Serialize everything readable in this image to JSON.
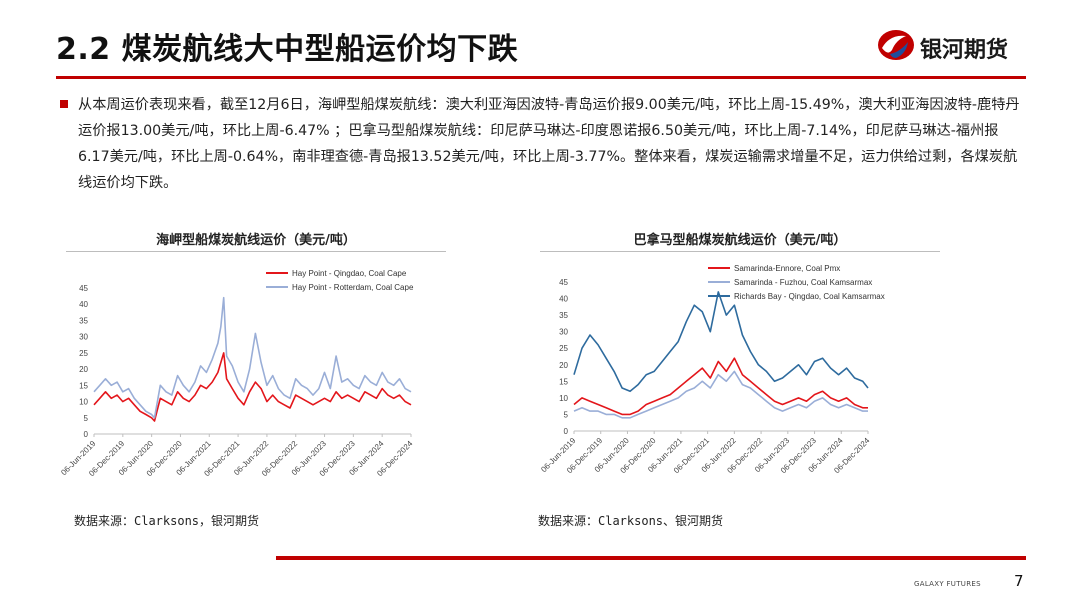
{
  "slide": {
    "title": "2.2 煤炭航线大中型船运价均下跌",
    "logo_text": "银河期货",
    "paragraph": "从本周运价表现来看，截至12月6日，海岬型船煤炭航线：澳大利亚海因波特-青岛运价报9.00美元/吨，环比上周-15.49%，澳大利亚海因波特-鹿特丹运价报13.00美元/吨，环比上周-6.47% ；巴拿马型船煤炭航线：印尼萨马琳达-印度恩诺报6.50美元/吨，环比上周-7.14%，印尼萨马琳达-福州报6.17美元/吨，环比上周-0.64%，南非理查德-青岛报13.52美元/吨，环比上周-3.77%。整体来看，煤炭运输需求增量不足，运力供给过剩，各煤炭航线运价均下跌。",
    "footer": "GALAXY FUTURES",
    "page_number": "7",
    "accent_color": "#c00000"
  },
  "chart_data": [
    {
      "type": "line",
      "title": "海岬型船煤炭航线运价（美元/吨）",
      "source": "数据来源：Clarksons，银河期货",
      "ylim": [
        0,
        45
      ],
      "yticks": [
        0,
        5,
        10,
        15,
        20,
        25,
        30,
        35,
        40,
        45
      ],
      "xlim": [
        0,
        11
      ],
      "xtick_labels": [
        "06-Jun-2019",
        "06-Dec-2019",
        "06-Jun-2020",
        "06-Dec-2020",
        "06-Jun-2021",
        "06-Dec-2021",
        "06-Jun-2022",
        "06-Dec-2022",
        "06-Jun-2023",
        "06-Dec-2023",
        "06-Jun-2024",
        "06-Dec-2024"
      ],
      "legend_position": "top-right",
      "series": [
        {
          "name": "Hay Point - Qingdao,  Coal Cape",
          "color": "#e3161b",
          "x": [
            0,
            0.2,
            0.4,
            0.6,
            0.8,
            1.0,
            1.2,
            1.4,
            1.6,
            1.8,
            2.0,
            2.1,
            2.3,
            2.5,
            2.7,
            2.9,
            3.1,
            3.3,
            3.5,
            3.7,
            3.9,
            4.1,
            4.3,
            4.4,
            4.5,
            4.6,
            4.8,
            5.0,
            5.2,
            5.4,
            5.6,
            5.8,
            6.0,
            6.2,
            6.4,
            6.6,
            6.8,
            7.0,
            7.2,
            7.4,
            7.6,
            7.8,
            8.0,
            8.2,
            8.4,
            8.6,
            8.8,
            9.0,
            9.2,
            9.4,
            9.6,
            9.8,
            10.0,
            10.2,
            10.4,
            10.6,
            10.8,
            11.0
          ],
          "y": [
            9,
            11,
            13,
            11,
            12,
            10,
            11,
            9,
            7,
            6,
            5,
            4,
            11,
            10,
            9,
            13,
            11,
            10,
            12,
            15,
            14,
            16,
            19,
            22,
            25,
            17,
            14,
            11,
            9,
            13,
            16,
            14,
            10,
            12,
            10,
            9,
            8,
            12,
            11,
            10,
            9,
            10,
            11,
            10,
            13,
            11,
            12,
            11,
            10,
            13,
            12,
            11,
            14,
            12,
            11,
            12,
            10,
            9
          ]
        },
        {
          "name": "Hay Point - Rotterdam,  Coal Cape",
          "color": "#9aaed7",
          "x": [
            0,
            0.2,
            0.4,
            0.6,
            0.8,
            1.0,
            1.2,
            1.4,
            1.6,
            1.8,
            2.0,
            2.1,
            2.3,
            2.5,
            2.7,
            2.9,
            3.1,
            3.3,
            3.5,
            3.7,
            3.9,
            4.1,
            4.3,
            4.4,
            4.5,
            4.6,
            4.8,
            5.0,
            5.2,
            5.4,
            5.6,
            5.8,
            6.0,
            6.2,
            6.4,
            6.6,
            6.8,
            7.0,
            7.2,
            7.4,
            7.6,
            7.8,
            8.0,
            8.2,
            8.4,
            8.6,
            8.8,
            9.0,
            9.2,
            9.4,
            9.6,
            9.8,
            10.0,
            10.2,
            10.4,
            10.6,
            10.8,
            11.0
          ],
          "y": [
            13,
            15,
            17,
            15,
            16,
            13,
            14,
            11,
            9,
            7,
            6,
            5,
            15,
            13,
            12,
            18,
            15,
            13,
            16,
            21,
            19,
            23,
            28,
            33,
            42,
            24,
            21,
            16,
            13,
            20,
            31,
            22,
            15,
            18,
            14,
            12,
            11,
            17,
            15,
            14,
            12,
            14,
            19,
            14,
            24,
            16,
            17,
            15,
            14,
            18,
            16,
            15,
            19,
            16,
            15,
            17,
            14,
            13
          ]
        }
      ]
    },
    {
      "type": "line",
      "title": "巴拿马型船煤炭航线运价（美元/吨）",
      "source": "数据来源：Clarksons、银河期货",
      "ylim": [
        0,
        45
      ],
      "yticks": [
        0,
        5,
        10,
        15,
        20,
        25,
        30,
        35,
        40,
        45
      ],
      "xlim": [
        0,
        11
      ],
      "xtick_labels": [
        "06-Jun-2019",
        "06-Dec-2019",
        "06-Jun-2020",
        "06-Dec-2020",
        "06-Jun-2021",
        "06-Dec-2021",
        "06-Jun-2022",
        "06-Dec-2022",
        "06-Jun-2023",
        "06-Dec-2023",
        "06-Jun-2024",
        "06-Dec-2024"
      ],
      "legend_position": "top-left",
      "series": [
        {
          "name": "Samarinda-Ennore,  Coal Pmx",
          "color": "#e3161b",
          "x": [
            0,
            0.3,
            0.6,
            0.9,
            1.2,
            1.5,
            1.8,
            2.1,
            2.4,
            2.7,
            3.0,
            3.3,
            3.6,
            3.9,
            4.2,
            4.5,
            4.8,
            5.1,
            5.4,
            5.7,
            6.0,
            6.3,
            6.6,
            6.9,
            7.2,
            7.5,
            7.8,
            8.1,
            8.4,
            8.7,
            9.0,
            9.3,
            9.6,
            9.9,
            10.2,
            10.5,
            10.8,
            11.0
          ],
          "y": [
            8,
            10,
            9,
            8,
            7,
            6,
            5,
            5,
            6,
            8,
            9,
            10,
            11,
            13,
            15,
            17,
            19,
            16,
            21,
            18,
            22,
            17,
            15,
            13,
            11,
            9,
            8,
            9,
            10,
            9,
            11,
            12,
            10,
            9,
            10,
            8,
            7,
            7
          ]
        },
        {
          "name": "Samarinda - Fuzhou,  Coal Kamsarmax",
          "color": "#9aaed7",
          "x": [
            0,
            0.3,
            0.6,
            0.9,
            1.2,
            1.5,
            1.8,
            2.1,
            2.4,
            2.7,
            3.0,
            3.3,
            3.6,
            3.9,
            4.2,
            4.5,
            4.8,
            5.1,
            5.4,
            5.7,
            6.0,
            6.3,
            6.6,
            6.9,
            7.2,
            7.5,
            7.8,
            8.1,
            8.4,
            8.7,
            9.0,
            9.3,
            9.6,
            9.9,
            10.2,
            10.5,
            10.8,
            11.0
          ],
          "y": [
            6,
            7,
            6,
            6,
            5,
            5,
            4,
            4,
            5,
            6,
            7,
            8,
            9,
            10,
            12,
            13,
            15,
            13,
            17,
            15,
            18,
            14,
            13,
            11,
            9,
            7,
            6,
            7,
            8,
            7,
            9,
            10,
            8,
            7,
            8,
            7,
            6,
            6
          ]
        },
        {
          "name": "Richards Bay - Qingdao,  Coal Kamsarmax",
          "color": "#2e6b9e",
          "x": [
            0,
            0.3,
            0.6,
            0.9,
            1.2,
            1.5,
            1.8,
            2.1,
            2.4,
            2.7,
            3.0,
            3.3,
            3.6,
            3.9,
            4.2,
            4.5,
            4.8,
            5.1,
            5.4,
            5.7,
            6.0,
            6.3,
            6.6,
            6.9,
            7.2,
            7.5,
            7.8,
            8.1,
            8.4,
            8.7,
            9.0,
            9.3,
            9.6,
            9.9,
            10.2,
            10.5,
            10.8,
            11.0
          ],
          "y": [
            17,
            25,
            29,
            26,
            22,
            18,
            13,
            12,
            14,
            17,
            18,
            21,
            24,
            27,
            33,
            38,
            36,
            30,
            42,
            35,
            38,
            29,
            24,
            20,
            18,
            15,
            16,
            18,
            20,
            17,
            21,
            22,
            19,
            17,
            19,
            16,
            15,
            13
          ]
        }
      ]
    }
  ]
}
